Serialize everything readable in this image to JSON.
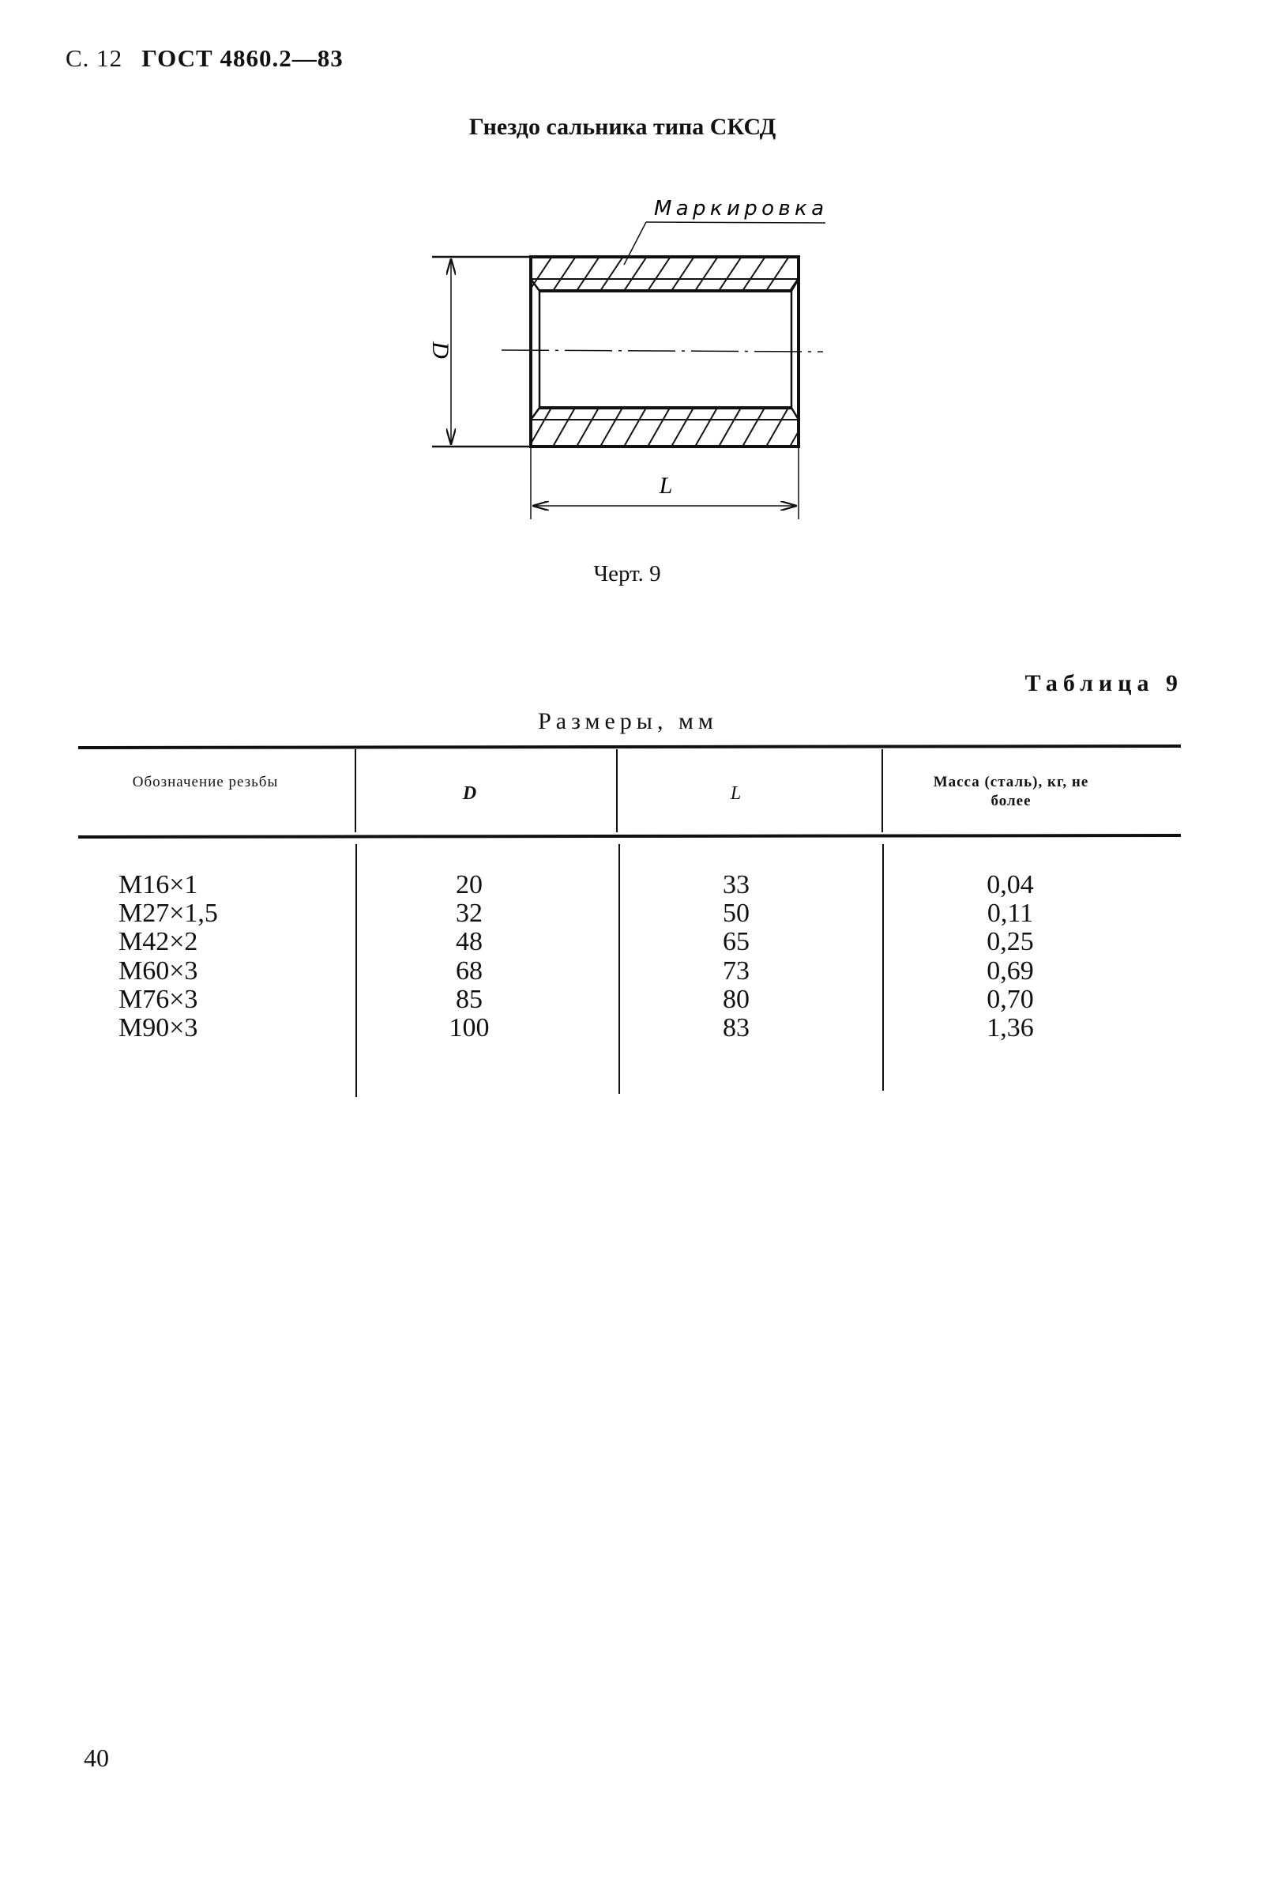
{
  "header": {
    "page": "С. 12",
    "standard": "ГОСТ 4860.2—83"
  },
  "title": "Гнездо сальника типа СКСД",
  "drawing": {
    "marking_label": "Маркировка",
    "dim_D": "D",
    "dim_L": "L",
    "caption": "Черт. 9"
  },
  "table": {
    "number": "Таблица 9",
    "units": "Размеры, мм",
    "columns": [
      "Обозначение резьбы",
      "D",
      "L",
      "Масса (сталь), кг, не более"
    ],
    "rows": [
      [
        "М16×1",
        "20",
        "33",
        "0,04"
      ],
      [
        "М27×1,5",
        "32",
        "50",
        "0,11"
      ],
      [
        "М42×2",
        "48",
        "65",
        "0,25"
      ],
      [
        "М60×3",
        "68",
        "73",
        "0,69"
      ],
      [
        "М76×3",
        "85",
        "80",
        "0,70"
      ],
      [
        "М90×3",
        "100",
        "83",
        "1,36"
      ]
    ]
  },
  "page_number": "40"
}
